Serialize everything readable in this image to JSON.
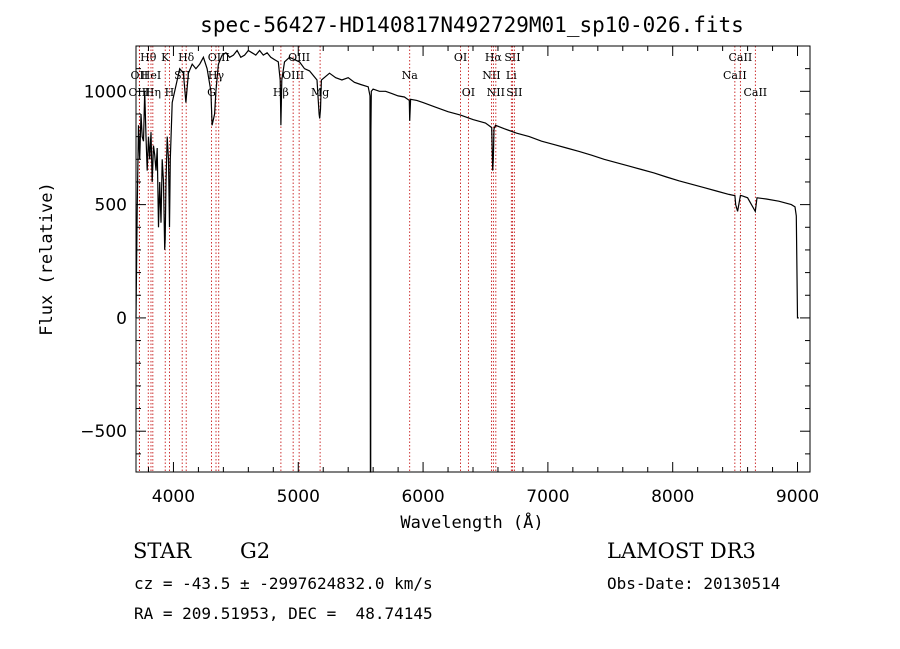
{
  "chart_data": {
    "type": "line",
    "title": "spec-56427-HD140817N492729M01_sp10-026.fits",
    "xlabel": "Wavelength (Å)",
    "ylabel": "Flux (relative)",
    "xlim": [
      3700,
      9100
    ],
    "ylim": [
      -680,
      1200
    ],
    "xticks": [
      4000,
      5000,
      6000,
      7000,
      8000,
      9000
    ],
    "yticks": [
      -500,
      0,
      500,
      1000
    ],
    "grid": false,
    "series": [
      {
        "name": "spectrum",
        "x": [
          3700,
          3710,
          3720,
          3730,
          3740,
          3750,
          3760,
          3770,
          3780,
          3790,
          3800,
          3810,
          3820,
          3830,
          3840,
          3850,
          3860,
          3870,
          3880,
          3890,
          3900,
          3910,
          3920,
          3930,
          3934,
          3940,
          3950,
          3960,
          3968,
          3975,
          3990,
          4010,
          4030,
          4050,
          4080,
          4100,
          4120,
          4150,
          4180,
          4210,
          4240,
          4270,
          4300,
          4310,
          4330,
          4340,
          4360,
          4390,
          4420,
          4450,
          4480,
          4510,
          4540,
          4570,
          4600,
          4630,
          4660,
          4690,
          4720,
          4750,
          4780,
          4810,
          4840,
          4855,
          4861,
          4868,
          4890,
          4930,
          4970,
          5010,
          5050,
          5090,
          5150,
          5167,
          5172,
          5178,
          5185,
          5250,
          5300,
          5350,
          5400,
          5450,
          5500,
          5560,
          5575,
          5578,
          5580,
          5582,
          5585,
          5600,
          5650,
          5700,
          5750,
          5800,
          5850,
          5890,
          5893,
          5900,
          5950,
          6000,
          6100,
          6200,
          6300,
          6400,
          6500,
          6550,
          6558,
          6563,
          6568,
          6580,
          6650,
          6750,
          6850,
          6950,
          7050,
          7150,
          7250,
          7350,
          7450,
          7550,
          7650,
          7750,
          7850,
          7950,
          8050,
          8150,
          8250,
          8350,
          8450,
          8498,
          8505,
          8520,
          8542,
          8550,
          8600,
          8662,
          8675,
          8750,
          8850,
          8950,
          8980,
          8990,
          9000,
          9010
        ],
        "values": [
          0,
          480,
          850,
          700,
          900,
          800,
          780,
          1000,
          800,
          650,
          800,
          700,
          820,
          600,
          760,
          720,
          650,
          750,
          400,
          600,
          420,
          700,
          600,
          300,
          350,
          600,
          800,
          700,
          400,
          700,
          950,
          1000,
          1050,
          1100,
          1080,
          950,
          1080,
          1120,
          1100,
          1120,
          1150,
          1100,
          1000,
          850,
          900,
          1000,
          1120,
          1160,
          1170,
          1150,
          1160,
          1180,
          1150,
          1160,
          1180,
          1170,
          1160,
          1180,
          1160,
          1170,
          1150,
          1140,
          1130,
          1050,
          850,
          1050,
          1130,
          1150,
          1140,
          1130,
          1100,
          1090,
          1050,
          900,
          880,
          920,
          1050,
          1080,
          1060,
          1050,
          1060,
          1040,
          1030,
          1020,
          980,
          -680,
          -680,
          820,
          1000,
          1010,
          1000,
          1000,
          990,
          980,
          975,
          960,
          870,
          965,
          960,
          950,
          930,
          910,
          895,
          875,
          860,
          840,
          650,
          700,
          835,
          850,
          835,
          815,
          800,
          780,
          765,
          750,
          735,
          718,
          700,
          685,
          670,
          655,
          640,
          622,
          605,
          590,
          575,
          560,
          545,
          540,
          500,
          470,
          540,
          540,
          530,
          470,
          530,
          525,
          515,
          500,
          490,
          450,
          0,
          0
        ]
      }
    ],
    "lines": [
      {
        "label": "Hθ",
        "x": 3798,
        "row": 0
      },
      {
        "label": "OII",
        "x": 3727,
        "row": 1
      },
      {
        "label": "OIII",
        "x": 3727,
        "row": 2
      },
      {
        "label": "HeI",
        "x": 3820,
        "row": 1
      },
      {
        "label": "Hη",
        "x": 3835,
        "row": 2
      },
      {
        "label": "K",
        "x": 3934,
        "row": 0
      },
      {
        "label": "H",
        "x": 3968,
        "row": 2
      },
      {
        "label": "SII",
        "x": 4070,
        "row": 1
      },
      {
        "label": "Hδ",
        "x": 4102,
        "row": 0
      },
      {
        "label": "G",
        "x": 4305,
        "row": 2
      },
      {
        "label": "Hγ",
        "x": 4341,
        "row": 1
      },
      {
        "label": "OIII",
        "x": 4363,
        "row": 0
      },
      {
        "label": "Hβ",
        "x": 4861,
        "row": 2
      },
      {
        "label": "OIII",
        "x": 4959,
        "row": 1
      },
      {
        "label": "OIII",
        "x": 5007,
        "row": 0
      },
      {
        "label": "Mg",
        "x": 5175,
        "row": 2
      },
      {
        "label": "Na",
        "x": 5893,
        "row": 1
      },
      {
        "label": "OI",
        "x": 6300,
        "row": 0
      },
      {
        "label": "OI",
        "x": 6363,
        "row": 2
      },
      {
        "label": "NII",
        "x": 6548,
        "row": 1
      },
      {
        "label": "Hα",
        "x": 6563,
        "row": 0
      },
      {
        "label": "NII",
        "x": 6583,
        "row": 2
      },
      {
        "label": "Li",
        "x": 6707,
        "row": 1
      },
      {
        "label": "SII",
        "x": 6716,
        "row": 0
      },
      {
        "label": "SII",
        "x": 6731,
        "row": 2
      },
      {
        "label": "CaII",
        "x": 8498,
        "row": 1
      },
      {
        "label": "CaII",
        "x": 8542,
        "row": 0
      },
      {
        "label": "CaII",
        "x": 8662,
        "row": 2
      }
    ]
  },
  "info": {
    "object_type": "STAR",
    "subclass": "G2",
    "survey": "LAMOST DR3",
    "cz": "cz = -43.5 ± -2997624832.0 km/s",
    "obs_date": "Obs-Date: 20130514",
    "coords": "RA = 209.51953, DEC =  48.74145"
  }
}
